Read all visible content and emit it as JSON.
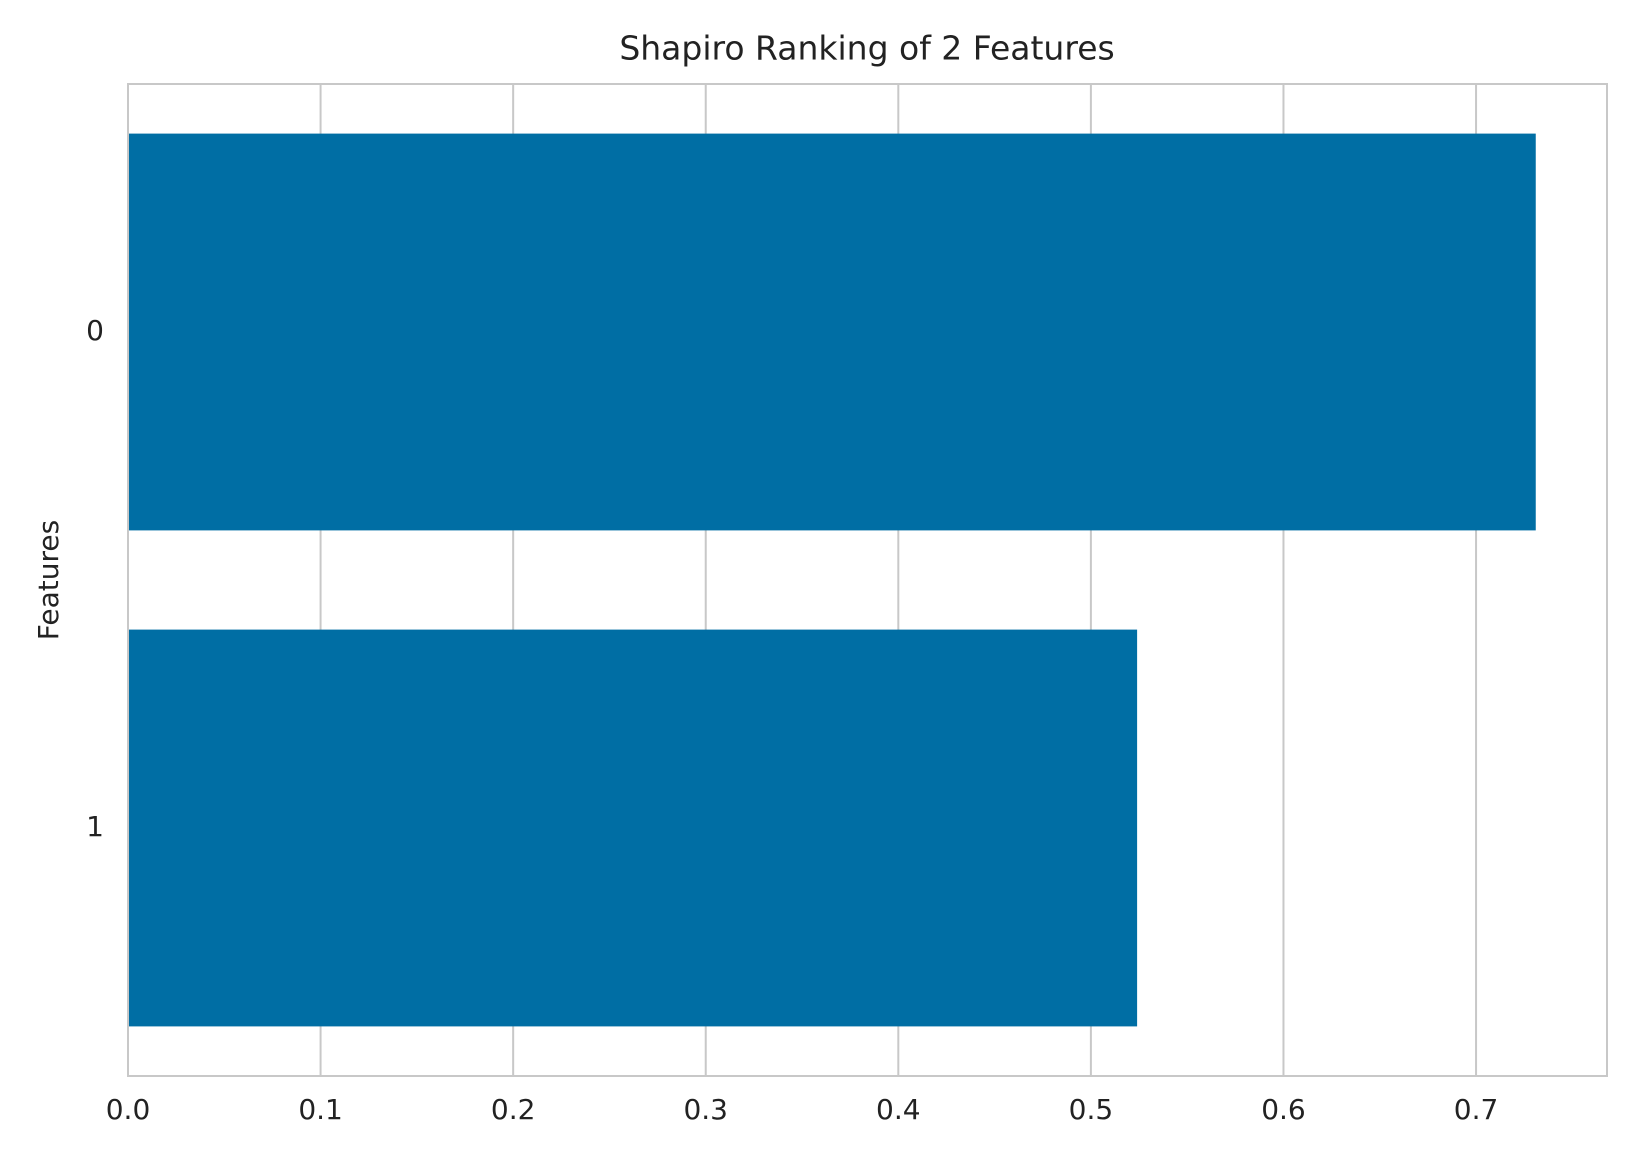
{
  "chart_data": {
    "type": "barh",
    "title": "Shapiro Ranking of 2 Features",
    "ylabel": "Features",
    "categories": [
      "0",
      "1"
    ],
    "values": [
      0.731,
      0.524
    ],
    "color": "#006ea4",
    "xlim": [
      0,
      0.768
    ],
    "xticks": [
      {
        "value": 0,
        "label": "0.0"
      },
      0.1,
      0.2,
      0.3,
      0.4,
      0.5,
      0.6,
      0.7
    ],
    "grid": true
  }
}
